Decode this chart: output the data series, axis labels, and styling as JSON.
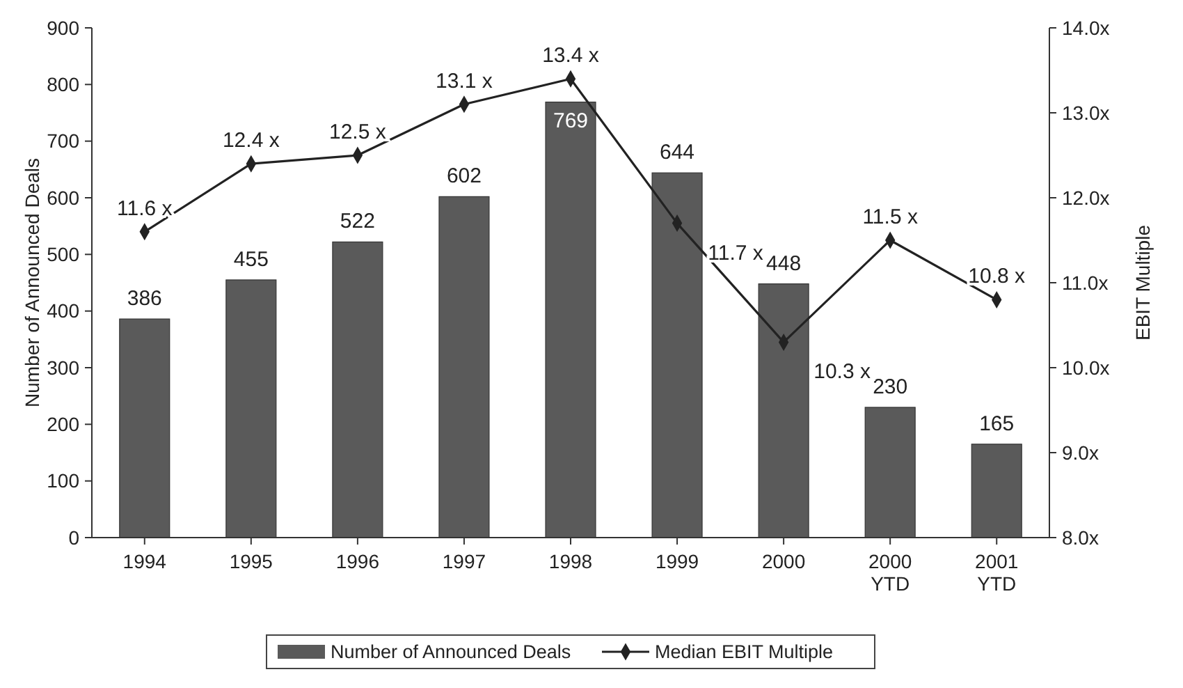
{
  "chart_data": {
    "type": "bar",
    "ylabel": "Number of Announced Deals",
    "y2label": "EBIT Multiple",
    "categories": [
      "1994",
      "1995",
      "1996",
      "1997",
      "1998",
      "1999",
      "2000",
      "2000 YTD",
      "2001 YTD"
    ],
    "series": [
      {
        "name": "Number of Announced Deals",
        "color": "#5a5a5a",
        "values": [
          386,
          455,
          522,
          602,
          769,
          644,
          448,
          230,
          165
        ],
        "value_labels": [
          "386",
          "455",
          "522",
          "602",
          "769",
          "644",
          "448",
          "230",
          "165"
        ]
      },
      {
        "name": "Median EBIT Multiple",
        "type": "line",
        "axis": "y2",
        "color": "#222222",
        "marker": "diamond",
        "values": [
          11.6,
          12.4,
          12.5,
          13.1,
          13.4,
          11.7,
          10.3,
          11.5,
          10.8
        ],
        "value_labels": [
          "11.6 x",
          "12.4 x",
          "12.5 x",
          "13.1 x",
          "13.4 x",
          "11.7 x",
          "10.3 x",
          "11.5 x",
          "10.8 x"
        ]
      }
    ],
    "ylim": [
      0,
      900
    ],
    "yticks": [
      0,
      100,
      200,
      300,
      400,
      500,
      600,
      700,
      800,
      900
    ],
    "y2lim": [
      8,
      14
    ],
    "y2ticks": [
      {
        "value": 8,
        "label": "8.0x"
      },
      {
        "value": 9,
        "label": "9.0x"
      },
      {
        "value": 10,
        "label": "10.0x"
      },
      {
        "value": 11,
        "label": "11.0x"
      },
      {
        "value": 12,
        "label": "12.0x"
      },
      {
        "value": 13,
        "label": "13.0x"
      },
      {
        "value": 14,
        "label": "14.0x"
      }
    ],
    "grid": false,
    "legend": "bottom"
  }
}
